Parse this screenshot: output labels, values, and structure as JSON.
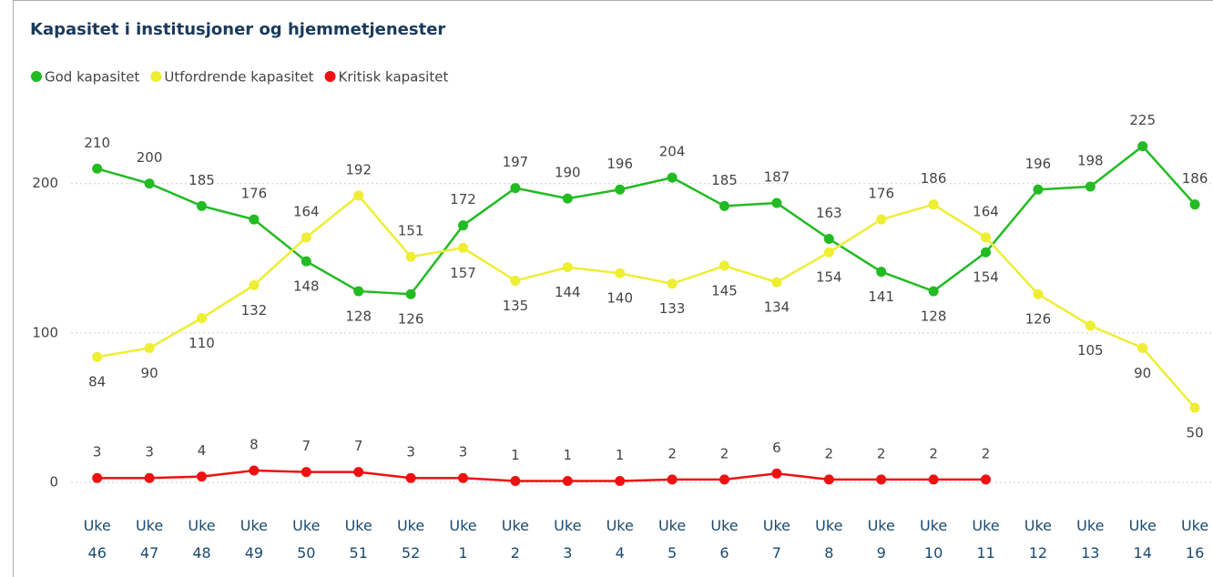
{
  "chart_data": {
    "type": "line",
    "title": "Kapasitet i institusjoner og hjemmetjenester",
    "categories": [
      "Uke 46",
      "Uke 47",
      "Uke 48",
      "Uke 49",
      "Uke 50",
      "Uke 51",
      "Uke 52",
      "Uke 1",
      "Uke 2",
      "Uke 3",
      "Uke 4",
      "Uke 5",
      "Uke 6",
      "Uke 7",
      "Uke 8",
      "Uke 9",
      "Uke 10",
      "Uke 11",
      "Uke 12",
      "Uke 13",
      "Uke 14",
      "Uke 16"
    ],
    "series": [
      {
        "name": "God kapasitet",
        "color": "#22bb22",
        "values": [
          210,
          200,
          185,
          176,
          148,
          128,
          126,
          172,
          197,
          190,
          196,
          204,
          185,
          187,
          163,
          141,
          128,
          154,
          196,
          198,
          225,
          186
        ]
      },
      {
        "name": "Utfordrende kapasitet",
        "color": "#eeee33",
        "values": [
          84,
          90,
          110,
          132,
          164,
          192,
          151,
          157,
          135,
          144,
          140,
          133,
          145,
          134,
          154,
          176,
          186,
          164,
          126,
          105,
          90,
          50
        ]
      },
      {
        "name": "Kritisk kapasitet",
        "color": "#ee1111",
        "values": [
          3,
          3,
          4,
          8,
          7,
          7,
          3,
          3,
          1,
          1,
          1,
          2,
          2,
          6,
          2,
          2,
          2,
          2,
          null,
          null,
          null,
          null
        ]
      }
    ],
    "ylim": [
      -20,
      240
    ],
    "yticks": [
      0,
      100,
      200
    ],
    "grid": true,
    "legend": "top-left"
  }
}
